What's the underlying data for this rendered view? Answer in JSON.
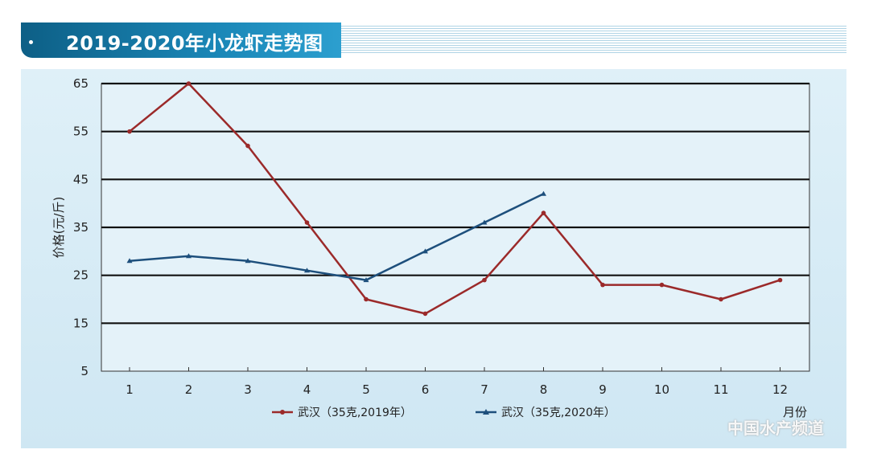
{
  "chart_data": {
    "type": "line",
    "title": "2019-2020年小龙虾走势图",
    "ylabel": "价格(元/斤)",
    "xlabel": "月份",
    "x": [
      1,
      2,
      3,
      4,
      5,
      6,
      7,
      8,
      9,
      10,
      11,
      12
    ],
    "ylim": [
      5,
      65
    ],
    "yticks": [
      5,
      15,
      25,
      35,
      45,
      55,
      65
    ],
    "grid": true,
    "legend_position": "bottom",
    "series": [
      {
        "name": "武汉（35克,2019年）",
        "color": "#9b2a2a",
        "marker": "circle",
        "values": [
          55,
          65,
          52,
          36,
          20,
          17,
          24,
          38,
          23,
          23,
          20,
          24
        ]
      },
      {
        "name": "武汉（35克,2020年）",
        "color": "#1d4f7c",
        "marker": "triangle",
        "values": [
          28,
          29,
          28,
          26,
          24,
          30,
          36,
          42,
          null,
          null,
          null,
          null
        ]
      }
    ]
  },
  "watermark": "中国水产频道"
}
